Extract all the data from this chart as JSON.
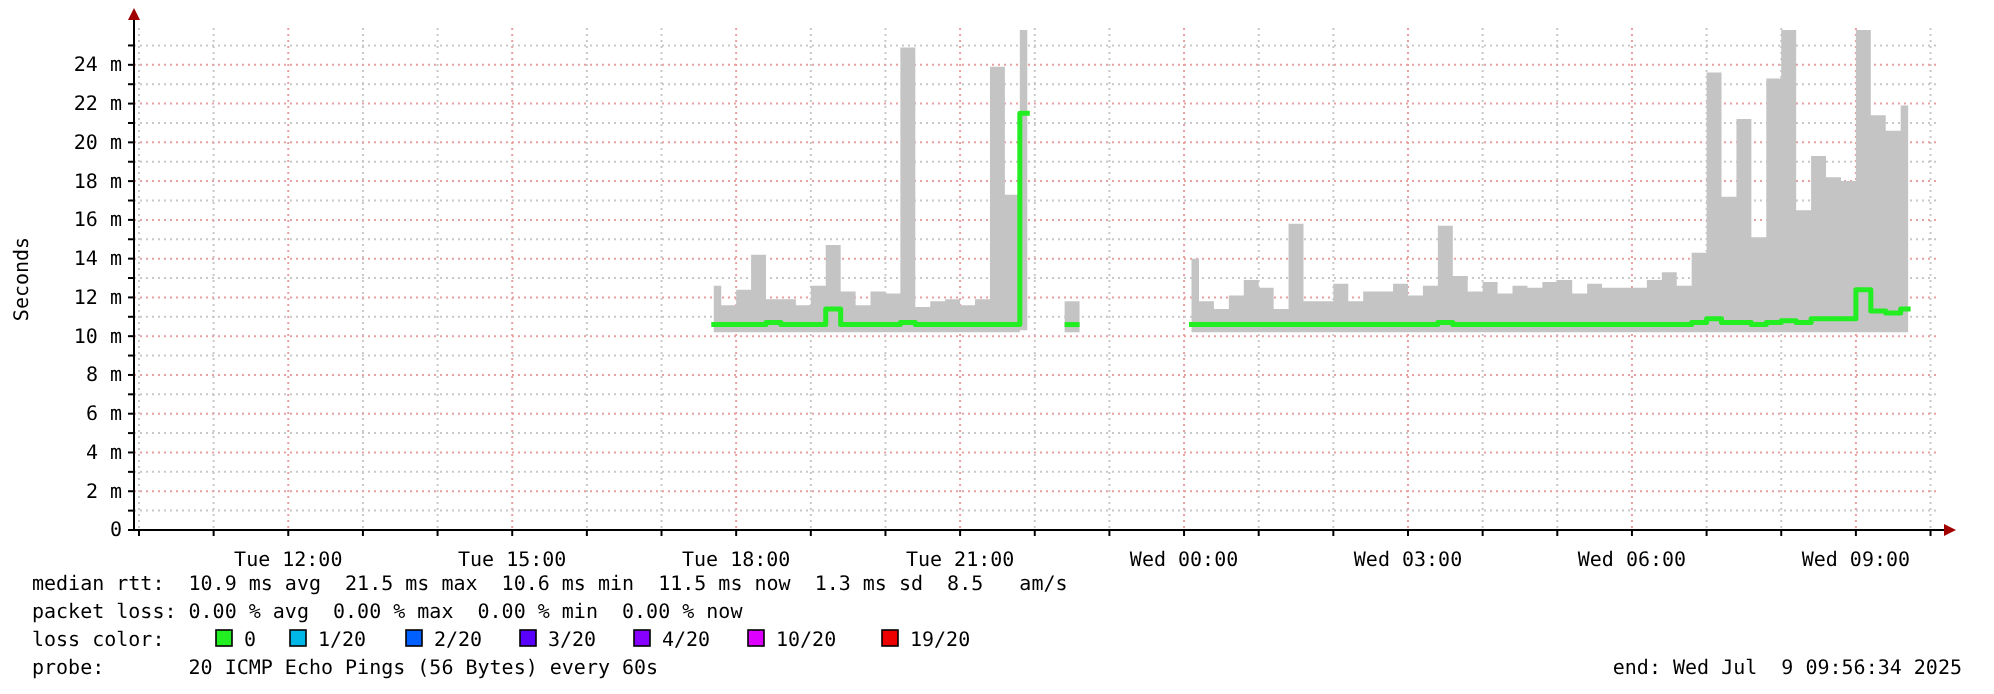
{
  "chart_data": {
    "type": "step",
    "ylabel": "Seconds",
    "xlim": [
      "2025-07-08T09:56",
      "2025-07-09T10:06"
    ],
    "xticks": [
      {
        "value": "2025-07-08T10:00",
        "label": null
      },
      {
        "value": "2025-07-08T11:00",
        "label": null
      },
      {
        "value": "2025-07-08T12:00",
        "label": "Tue 12:00"
      },
      {
        "value": "2025-07-08T13:00",
        "label": null
      },
      {
        "value": "2025-07-08T14:00",
        "label": null
      },
      {
        "value": "2025-07-08T15:00",
        "label": "Tue 15:00"
      },
      {
        "value": "2025-07-08T16:00",
        "label": null
      },
      {
        "value": "2025-07-08T17:00",
        "label": null
      },
      {
        "value": "2025-07-08T18:00",
        "label": "Tue 18:00"
      },
      {
        "value": "2025-07-08T19:00",
        "label": null
      },
      {
        "value": "2025-07-08T20:00",
        "label": null
      },
      {
        "value": "2025-07-08T21:00",
        "label": "Tue 21:00"
      },
      {
        "value": "2025-07-08T22:00",
        "label": null
      },
      {
        "value": "2025-07-08T23:00",
        "label": null
      },
      {
        "value": "2025-07-09T00:00",
        "label": "Wed 00:00"
      },
      {
        "value": "2025-07-09T01:00",
        "label": null
      },
      {
        "value": "2025-07-09T02:00",
        "label": null
      },
      {
        "value": "2025-07-09T03:00",
        "label": "Wed 03:00"
      },
      {
        "value": "2025-07-09T04:00",
        "label": null
      },
      {
        "value": "2025-07-09T05:00",
        "label": null
      },
      {
        "value": "2025-07-09T06:00",
        "label": "Wed 06:00"
      },
      {
        "value": "2025-07-09T07:00",
        "label": null
      },
      {
        "value": "2025-07-09T08:00",
        "label": null
      },
      {
        "value": "2025-07-09T09:00",
        "label": "Wed 09:00"
      },
      {
        "value": "2025-07-09T10:00",
        "label": null
      }
    ],
    "ylim": [
      0,
      25.9
    ],
    "yticks": [
      0,
      {
        "value": 1,
        "label": null
      },
      {
        "value": 2,
        "label": "2 m"
      },
      {
        "value": 3,
        "label": null
      },
      {
        "value": 4,
        "label": "4 m"
      },
      {
        "value": 5,
        "label": null
      },
      {
        "value": 6,
        "label": "6 m"
      },
      {
        "value": 7,
        "label": null
      },
      {
        "value": 8,
        "label": "8 m"
      },
      {
        "value": 9,
        "label": null
      },
      {
        "value": 10,
        "label": "10 m"
      },
      {
        "value": 11,
        "label": null
      },
      {
        "value": 12,
        "label": "12 m"
      },
      {
        "value": 13,
        "label": null
      },
      {
        "value": 14,
        "label": "14 m"
      },
      {
        "value": 15,
        "label": null
      },
      {
        "value": 16,
        "label": "16 m"
      },
      {
        "value": 17,
        "label": null
      },
      {
        "value": 18,
        "label": "18 m"
      },
      {
        "value": 19,
        "label": null
      },
      {
        "value": 20,
        "label": "20 m"
      },
      {
        "value": 21,
        "label": null
      },
      {
        "value": 22,
        "label": "22 m"
      },
      {
        "value": 23,
        "label": null
      },
      {
        "value": 24,
        "label": "24 m"
      },
      {
        "value": 25,
        "label": null
      }
    ],
    "grid": true,
    "x": [
      "2025-07-08T17:42",
      "2025-07-08T17:54",
      "2025-07-08T18:06",
      "2025-07-08T18:18",
      "2025-07-08T18:30",
      "2025-07-08T18:42",
      "2025-07-08T18:54",
      "2025-07-08T19:06",
      "2025-07-08T19:18",
      "2025-07-08T19:30",
      "2025-07-08T19:42",
      "2025-07-08T19:54",
      "2025-07-08T20:06",
      "2025-07-08T20:18",
      "2025-07-08T20:30",
      "2025-07-08T20:42",
      "2025-07-08T20:54",
      "2025-07-08T21:06",
      "2025-07-08T21:18",
      "2025-07-08T21:30",
      "2025-07-08T21:42",
      "2025-07-08T21:54",
      "2025-07-08T22:12",
      "2025-07-08T22:30",
      "2025-07-08T22:48",
      "2025-07-09T00:06",
      "2025-07-09T00:18",
      "2025-07-09T00:30",
      "2025-07-09T00:42",
      "2025-07-09T00:54",
      "2025-07-09T01:06",
      "2025-07-09T01:18",
      "2025-07-09T01:30",
      "2025-07-09T01:42",
      "2025-07-09T01:54",
      "2025-07-09T02:06",
      "2025-07-09T02:18",
      "2025-07-09T02:30",
      "2025-07-09T02:42",
      "2025-07-09T02:54",
      "2025-07-09T03:06",
      "2025-07-09T03:18",
      "2025-07-09T03:30",
      "2025-07-09T03:42",
      "2025-07-09T03:54",
      "2025-07-09T04:06",
      "2025-07-09T04:18",
      "2025-07-09T04:30",
      "2025-07-09T04:42",
      "2025-07-09T04:54",
      "2025-07-09T05:06",
      "2025-07-09T05:18",
      "2025-07-09T05:30",
      "2025-07-09T05:42",
      "2025-07-09T05:54",
      "2025-07-09T06:06",
      "2025-07-09T06:18",
      "2025-07-09T06:30",
      "2025-07-09T06:42",
      "2025-07-09T06:54",
      "2025-07-09T07:06",
      "2025-07-09T07:18",
      "2025-07-09T07:30",
      "2025-07-09T07:42",
      "2025-07-09T07:54",
      "2025-07-09T08:06",
      "2025-07-09T08:18",
      "2025-07-09T08:30",
      "2025-07-09T08:42",
      "2025-07-09T08:54",
      "2025-07-09T09:06",
      "2025-07-09T09:18",
      "2025-07-09T09:30",
      "2025-07-09T09:42"
    ],
    "series": [
      {
        "color": "#22ee22",
        "values": [
          10.6,
          10.6,
          10.6,
          10.6,
          10.7,
          10.6,
          10.6,
          10.6,
          11.4,
          10.6,
          10.6,
          10.6,
          10.6,
          10.7,
          10.6,
          10.6,
          10.6,
          10.6,
          10.6,
          10.6,
          10.6,
          21.5,
          null,
          10.6,
          null,
          10.6,
          10.6,
          10.6,
          10.6,
          10.6,
          10.6,
          10.6,
          10.6,
          10.6,
          10.6,
          10.6,
          10.6,
          10.6,
          10.6,
          10.6,
          10.6,
          10.6,
          10.7,
          10.6,
          10.6,
          10.6,
          10.6,
          10.6,
          10.6,
          10.6,
          10.6,
          10.6,
          10.6,
          10.6,
          10.6,
          10.6,
          10.6,
          10.6,
          10.6,
          10.7,
          10.9,
          10.7,
          10.7,
          10.6,
          10.7,
          10.8,
          10.7,
          10.9,
          10.9,
          10.9,
          12.4,
          11.3,
          11.2,
          11.4
        ],
        "lower": [
          10.2,
          10.2,
          10.2,
          10.2,
          10.2,
          10.2,
          10.2,
          10.2,
          10.2,
          10.2,
          10.2,
          10.2,
          10.2,
          10.2,
          10.2,
          10.2,
          10.2,
          10.2,
          10.2,
          10.2,
          10.2,
          10.3,
          null,
          10.2,
          null,
          10.2,
          10.2,
          10.2,
          10.2,
          10.2,
          10.2,
          10.2,
          10.2,
          10.2,
          10.2,
          10.2,
          10.2,
          10.2,
          10.2,
          10.2,
          10.2,
          10.2,
          10.2,
          10.2,
          10.2,
          10.2,
          10.2,
          10.2,
          10.2,
          10.2,
          10.2,
          10.2,
          10.2,
          10.2,
          10.2,
          10.2,
          10.2,
          10.2,
          10.2,
          10.2,
          10.2,
          10.2,
          10.2,
          10.2,
          10.2,
          10.2,
          10.2,
          10.2,
          10.2,
          10.2,
          10.2,
          10.2,
          10.2,
          10.2
        ],
        "upper": [
          12.6,
          11.6,
          12.4,
          14.2,
          11.9,
          11.9,
          11.6,
          12.6,
          14.7,
          12.3,
          11.6,
          12.3,
          12.2,
          24.9,
          11.5,
          11.8,
          11.9,
          11.6,
          11.9,
          23.9,
          17.3,
          25.8,
          null,
          11.8,
          null,
          14.0,
          11.8,
          11.4,
          12.1,
          12.9,
          12.5,
          11.4,
          15.8,
          11.8,
          11.8,
          12.7,
          11.8,
          12.3,
          12.3,
          12.7,
          12.1,
          12.6,
          15.7,
          13.1,
          12.3,
          12.8,
          12.2,
          12.6,
          12.5,
          12.8,
          12.9,
          12.2,
          12.7,
          12.5,
          12.5,
          12.5,
          12.9,
          13.3,
          12.6,
          14.3,
          23.6,
          17.2,
          21.2,
          15.1,
          23.3,
          25.8,
          16.5,
          19.3,
          18.2,
          18.0,
          25.8,
          21.4,
          20.6,
          21.9
        ]
      }
    ],
    "annotations": [
      "median rtt:  10.9 ms avg  21.5 ms max  10.6 ms min  11.5 ms now  1.3 ms sd  8.5   am/s",
      "packet loss: 0.00 % avg  0.00 % max  0.00 % min  0.00 % now",
      "loss color:",
      "0",
      "1/20",
      "2/20",
      "3/20",
      "4/20",
      "10/20",
      "19/20",
      "probe:       20 ICMP Echo Pings (56 Bytes) every 60s",
      "end: Wed Jul  9 09:56:34 2025"
    ]
  }
}
